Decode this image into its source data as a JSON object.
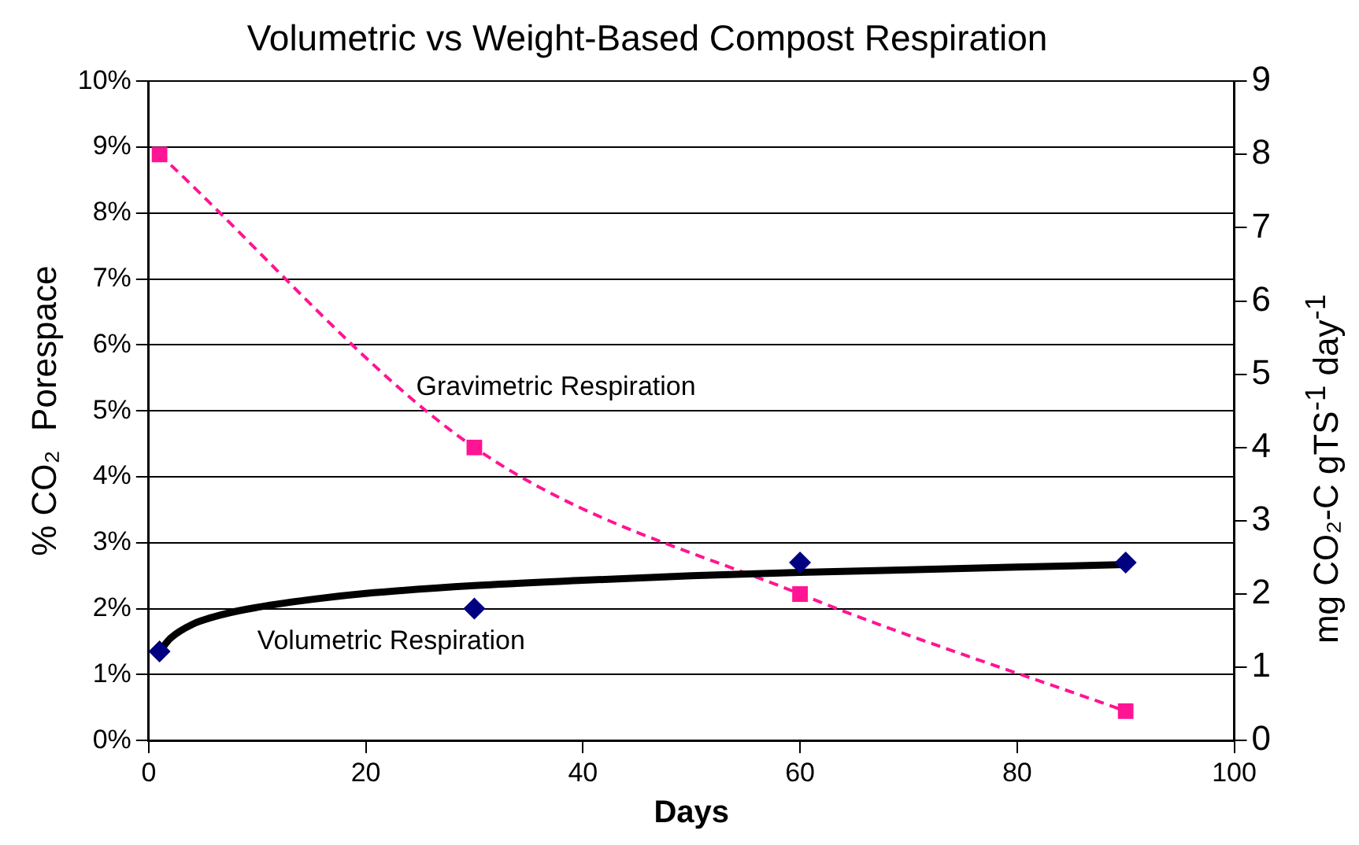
{
  "chart_data": {
    "type": "scatter",
    "title": "Volumetric vs Weight-Based Compost Respiration",
    "xlabel": "Days",
    "ylabel": "% CO₂  Porespace",
    "y2label": "mg CO₂-C gTS$^{-1}$ day$^{-1}$",
    "xlim": [
      0,
      100
    ],
    "xticks": [
      0,
      20,
      40,
      60,
      80,
      100
    ],
    "ylim": [
      0,
      10
    ],
    "yticks": [
      {
        "value": 0,
        "label": "0%"
      },
      {
        "value": 1,
        "label": "1%"
      },
      {
        "value": 2,
        "label": "2%"
      },
      {
        "value": 3,
        "label": "3%"
      },
      {
        "value": 4,
        "label": "4%"
      },
      {
        "value": 5,
        "label": "5%"
      },
      {
        "value": 6,
        "label": "6%"
      },
      {
        "value": 7,
        "label": "7%"
      },
      {
        "value": 8,
        "label": "8%"
      },
      {
        "value": 9,
        "label": "9%"
      },
      {
        "value": 10,
        "label": "10%"
      }
    ],
    "y2lim": [
      0,
      9
    ],
    "y2ticks": [
      0,
      1,
      2,
      3,
      4,
      5,
      6,
      7,
      8,
      9
    ],
    "grid": "y",
    "legend": false,
    "series": [
      {
        "name": "Volumetric Respiration",
        "type": "scatter",
        "color": "#000080",
        "marker": "diamond",
        "x": [
          1,
          30,
          60,
          90
        ],
        "values": [
          1.35,
          2.0,
          2.7,
          2.7
        ]
      },
      {
        "type": "line",
        "color": "#000000",
        "marker": "none",
        "line_style": "solid",
        "x": [
          1,
          2,
          4,
          7,
          10,
          15,
          20,
          30,
          40,
          50,
          60,
          70,
          80,
          90
        ],
        "values": [
          1.35,
          1.55,
          1.76,
          1.92,
          2.02,
          2.14,
          2.23,
          2.35,
          2.43,
          2.5,
          2.55,
          2.59,
          2.63,
          2.67
        ]
      },
      {
        "name": "Gravimetric Respiration",
        "type": "line",
        "axis": "y2",
        "color": "#ff1493",
        "marker": "square",
        "line_style": "dashed",
        "x": [
          1,
          30,
          60,
          90
        ],
        "values": [
          8.0,
          4.0,
          2.0,
          0.4
        ]
      }
    ]
  }
}
